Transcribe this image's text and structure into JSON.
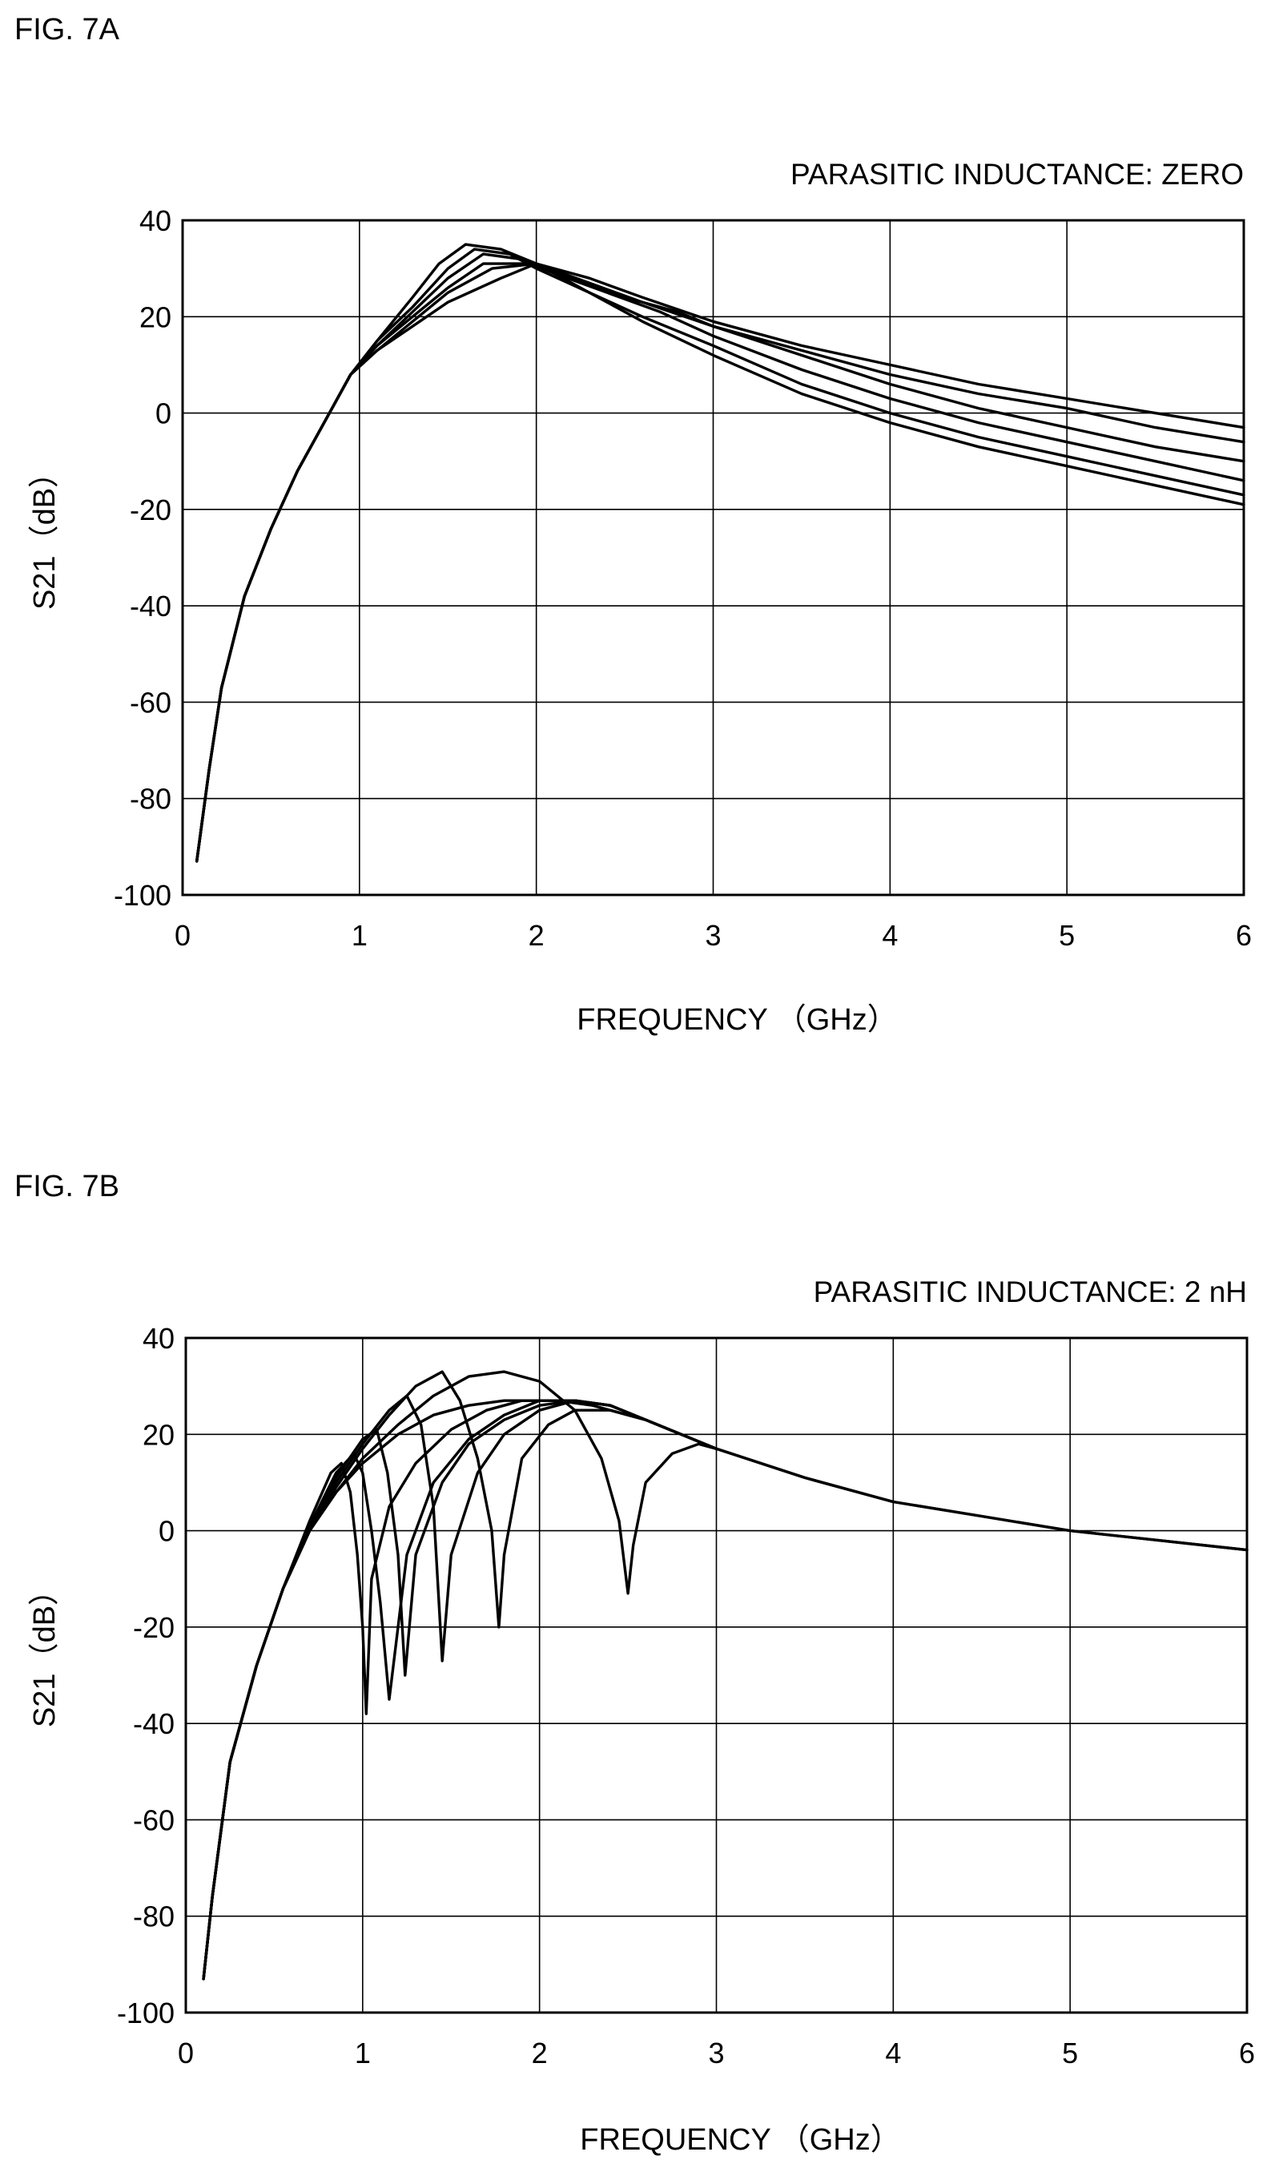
{
  "figures": [
    {
      "label": "FIG. 7A"
    },
    {
      "label": "FIG. 7B"
    }
  ],
  "chart_data": [
    {
      "type": "line",
      "title": "PARASITIC INDUCTANCE: ZERO",
      "xlabel": "FREQUENCY （GHz）",
      "ylabel": "S21（dB）",
      "xlim": [
        0,
        6
      ],
      "ylim": [
        -100,
        40
      ],
      "xticks": [
        "0",
        "1",
        "2",
        "3",
        "4",
        "5",
        "6"
      ],
      "yticks": [
        "40",
        "20",
        "0",
        "-20",
        "-40",
        "-60",
        "-80",
        "-100"
      ],
      "grid": true,
      "series": [
        {
          "x": [
            0.08,
            0.15,
            0.22,
            0.35,
            0.5,
            0.65,
            0.8,
            0.95,
            1.1,
            1.3,
            1.45,
            1.6,
            1.8,
            2.0,
            2.3,
            2.6,
            3.0,
            3.5,
            4.0,
            4.5,
            5.0,
            5.5,
            6.0
          ],
          "y": [
            -93,
            -74,
            -57,
            -38,
            -24,
            -12,
            -2,
            8,
            15,
            24,
            31,
            35,
            34,
            31,
            25,
            19,
            12,
            4,
            -2,
            -7,
            -11,
            -15,
            -19
          ]
        },
        {
          "x": [
            0.08,
            0.15,
            0.22,
            0.35,
            0.5,
            0.65,
            0.8,
            0.95,
            1.1,
            1.3,
            1.5,
            1.65,
            1.85,
            2.0,
            2.3,
            2.6,
            3.0,
            3.5,
            4.0,
            4.5,
            5.0,
            5.5,
            6.0
          ],
          "y": [
            -93,
            -74,
            -57,
            -38,
            -24,
            -12,
            -2,
            8,
            15,
            22,
            30,
            34,
            33,
            30,
            25,
            20,
            14,
            6,
            0,
            -5,
            -9,
            -13,
            -17
          ]
        },
        {
          "x": [
            0.08,
            0.15,
            0.22,
            0.35,
            0.5,
            0.65,
            0.8,
            0.95,
            1.1,
            1.3,
            1.5,
            1.7,
            1.9,
            2.1,
            2.4,
            2.7,
            3.0,
            3.5,
            4.0,
            4.5,
            5.0,
            5.5,
            6.0
          ],
          "y": [
            -93,
            -74,
            -57,
            -38,
            -24,
            -12,
            -2,
            8,
            14,
            21,
            28,
            33,
            32,
            29,
            25,
            21,
            16,
            9,
            3,
            -2,
            -6,
            -10,
            -14
          ]
        },
        {
          "x": [
            0.08,
            0.15,
            0.22,
            0.35,
            0.5,
            0.65,
            0.8,
            0.95,
            1.1,
            1.3,
            1.5,
            1.7,
            1.95,
            2.2,
            2.5,
            2.8,
            3.0,
            3.5,
            4.0,
            4.5,
            5.0,
            5.5,
            6.0
          ],
          "y": [
            -93,
            -74,
            -57,
            -38,
            -24,
            -12,
            -2,
            8,
            14,
            20,
            26,
            31,
            31,
            28,
            24,
            21,
            18,
            12,
            6,
            1,
            -3,
            -7,
            -10
          ]
        },
        {
          "x": [
            0.08,
            0.15,
            0.22,
            0.35,
            0.5,
            0.65,
            0.8,
            0.95,
            1.1,
            1.3,
            1.5,
            1.75,
            2.0,
            2.3,
            2.6,
            3.0,
            3.5,
            4.0,
            4.5,
            5.0,
            5.5,
            6.0
          ],
          "y": [
            -93,
            -74,
            -57,
            -38,
            -24,
            -12,
            -2,
            8,
            13,
            19,
            25,
            30,
            31,
            27,
            23,
            18,
            13,
            8,
            4,
            1,
            -3,
            -6
          ]
        },
        {
          "x": [
            0.08,
            0.15,
            0.22,
            0.35,
            0.5,
            0.65,
            0.8,
            0.95,
            1.1,
            1.3,
            1.5,
            1.8,
            2.0,
            2.3,
            2.6,
            3.0,
            3.5,
            4.0,
            4.5,
            5.0,
            5.5,
            6.0
          ],
          "y": [
            -93,
            -74,
            -57,
            -38,
            -24,
            -12,
            -2,
            8,
            13,
            18,
            23,
            28,
            31,
            28,
            24,
            19,
            14,
            10,
            6,
            3,
            0,
            -3
          ]
        }
      ]
    },
    {
      "type": "line",
      "title": "PARASITIC INDUCTANCE: 2 nH",
      "xlabel": "FREQUENCY （GHz）",
      "ylabel": "S21（dB）",
      "xlim": [
        0,
        6
      ],
      "ylim": [
        -100,
        40
      ],
      "xticks": [
        "0",
        "1",
        "2",
        "3",
        "4",
        "5",
        "6"
      ],
      "yticks": [
        "40",
        "20",
        "0",
        "-20",
        "-40",
        "-60",
        "-80",
        "-100"
      ],
      "grid": true,
      "series": [
        {
          "x": [
            0.1,
            0.15,
            0.25,
            0.4,
            0.55,
            0.7,
            0.82,
            0.88,
            0.93,
            0.97,
            1.0,
            1.02,
            1.05,
            1.15,
            1.3,
            1.5,
            1.7,
            1.9,
            2.1,
            2.3,
            2.6,
            3.0,
            3.5,
            4.0,
            4.5,
            5.0,
            5.5,
            6.0
          ],
          "y": [
            -93,
            -76,
            -48,
            -28,
            -12,
            2,
            12,
            14,
            8,
            -5,
            -20,
            -38,
            -10,
            5,
            14,
            21,
            25,
            27,
            27,
            26,
            23,
            17,
            11,
            6,
            3,
            0,
            -2,
            -4
          ]
        },
        {
          "x": [
            0.1,
            0.15,
            0.25,
            0.4,
            0.55,
            0.7,
            0.85,
            0.95,
            1.0,
            1.05,
            1.1,
            1.15,
            1.25,
            1.4,
            1.6,
            1.8,
            2.0,
            2.2,
            2.4,
            2.6,
            3.0
          ],
          "y": [
            -93,
            -76,
            -48,
            -28,
            -12,
            1,
            12,
            16,
            12,
            0,
            -15,
            -35,
            -5,
            10,
            19,
            24,
            27,
            27,
            26,
            23,
            17
          ]
        },
        {
          "x": [
            0.1,
            0.15,
            0.25,
            0.4,
            0.55,
            0.7,
            0.85,
            1.0,
            1.08,
            1.14,
            1.2,
            1.24,
            1.3,
            1.45,
            1.6,
            1.8,
            2.0,
            2.2,
            2.4,
            2.6,
            3.0
          ],
          "y": [
            -93,
            -76,
            -48,
            -28,
            -12,
            0,
            11,
            19,
            21,
            12,
            -5,
            -30,
            -5,
            10,
            18,
            23,
            26,
            27,
            26,
            23,
            17
          ]
        },
        {
          "x": [
            0.1,
            0.15,
            0.25,
            0.4,
            0.55,
            0.7,
            0.85,
            1.0,
            1.15,
            1.25,
            1.33,
            1.4,
            1.45,
            1.5,
            1.65,
            1.8,
            2.0,
            2.2,
            2.4,
            2.6,
            3.0
          ],
          "y": [
            -93,
            -76,
            -48,
            -28,
            -12,
            0,
            10,
            18,
            25,
            28,
            22,
            5,
            -27,
            -5,
            12,
            20,
            25,
            27,
            26,
            23,
            17
          ]
        },
        {
          "x": [
            0.1,
            0.15,
            0.25,
            0.4,
            0.55,
            0.7,
            0.85,
            1.0,
            1.15,
            1.3,
            1.45,
            1.55,
            1.65,
            1.73,
            1.77,
            1.8,
            1.9,
            2.05,
            2.2,
            2.4,
            2.6,
            3.0
          ],
          "y": [
            -93,
            -76,
            -48,
            -28,
            -12,
            0,
            9,
            17,
            24,
            30,
            33,
            27,
            15,
            0,
            -20,
            -5,
            15,
            22,
            25,
            25,
            23,
            17
          ]
        },
        {
          "x": [
            0.1,
            0.15,
            0.25,
            0.4,
            0.55,
            0.7,
            0.85,
            1.0,
            1.2,
            1.4,
            1.6,
            1.8,
            2.0,
            2.2,
            2.35,
            2.45,
            2.5,
            2.53,
            2.6,
            2.75,
            2.9,
            3.0
          ],
          "y": [
            -93,
            -76,
            -48,
            -28,
            -12,
            0,
            8,
            15,
            22,
            28,
            32,
            33,
            31,
            25,
            15,
            2,
            -13,
            -3,
            10,
            16,
            18,
            17
          ]
        },
        {
          "x": [
            0.1,
            0.15,
            0.25,
            0.4,
            0.55,
            0.7,
            0.85,
            1.0,
            1.2,
            1.4,
            1.6,
            1.8,
            2.0,
            2.2,
            2.4,
            2.6,
            3.0,
            3.5,
            4.0,
            4.5,
            5.0,
            5.5,
            6.0
          ],
          "y": [
            -93,
            -76,
            -48,
            -28,
            -12,
            0,
            8,
            14,
            20,
            24,
            26,
            27,
            27,
            27,
            26,
            23,
            17,
            11,
            6,
            3,
            0,
            -2,
            -4
          ]
        }
      ]
    }
  ]
}
